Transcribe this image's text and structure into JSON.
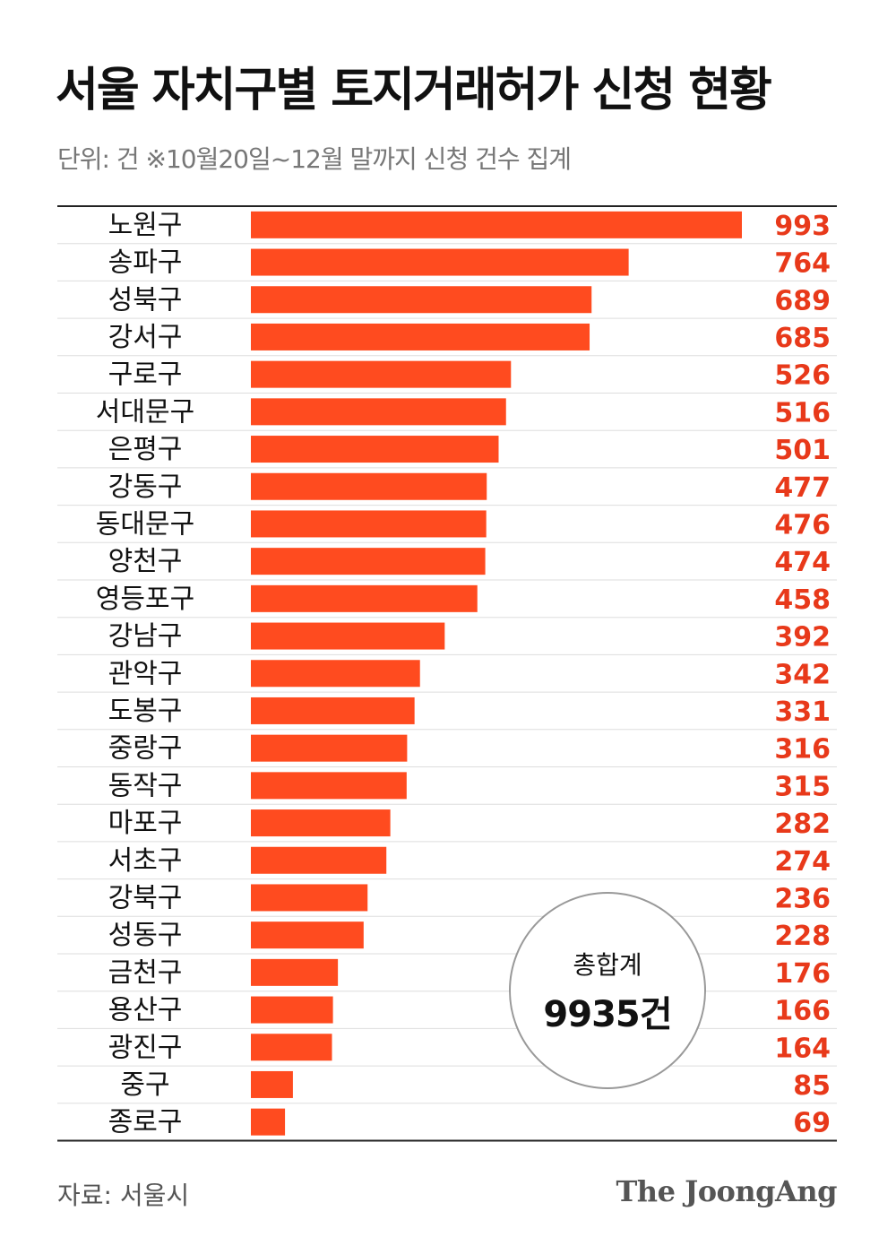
{
  "header": {
    "title": "서울 자치구별 토지거래허가 신청 현황",
    "subtitle": "단위: 건  ※10월20일~12월 말까지 신청 건수 집계"
  },
  "total": {
    "label": "총합계",
    "value": "9935건"
  },
  "footer": {
    "source": "자료: 서울시",
    "logo": "The JoongAng"
  },
  "colors": {
    "bar": "#ff4b1f",
    "value_text": "#e8391a",
    "rule": "#222222",
    "divider": "#dddddd"
  },
  "chart_data": {
    "type": "bar",
    "orientation": "horizontal",
    "title": "서울 자치구별 토지거래허가 신청 현황",
    "unit": "건",
    "categories": [
      "노원구",
      "송파구",
      "성북구",
      "강서구",
      "구로구",
      "서대문구",
      "은평구",
      "강동구",
      "동대문구",
      "양천구",
      "영등포구",
      "강남구",
      "관악구",
      "도봉구",
      "중랑구",
      "동작구",
      "마포구",
      "서초구",
      "강북구",
      "성동구",
      "금천구",
      "용산구",
      "광진구",
      "중구",
      "종로구"
    ],
    "values": [
      993,
      764,
      689,
      685,
      526,
      516,
      501,
      477,
      476,
      474,
      458,
      392,
      342,
      331,
      316,
      315,
      282,
      274,
      236,
      228,
      176,
      166,
      164,
      85,
      69
    ],
    "value_labels": [
      "993",
      "764",
      "689",
      "685",
      "526",
      "516",
      "501",
      "477",
      "476",
      "474",
      "458",
      "392",
      "342",
      "331",
      "316",
      "315",
      "282",
      "274",
      "236",
      "228",
      "176",
      "166",
      "164",
      "85",
      "69"
    ],
    "xlim": [
      0,
      993
    ],
    "grid": false,
    "legend": "none"
  }
}
